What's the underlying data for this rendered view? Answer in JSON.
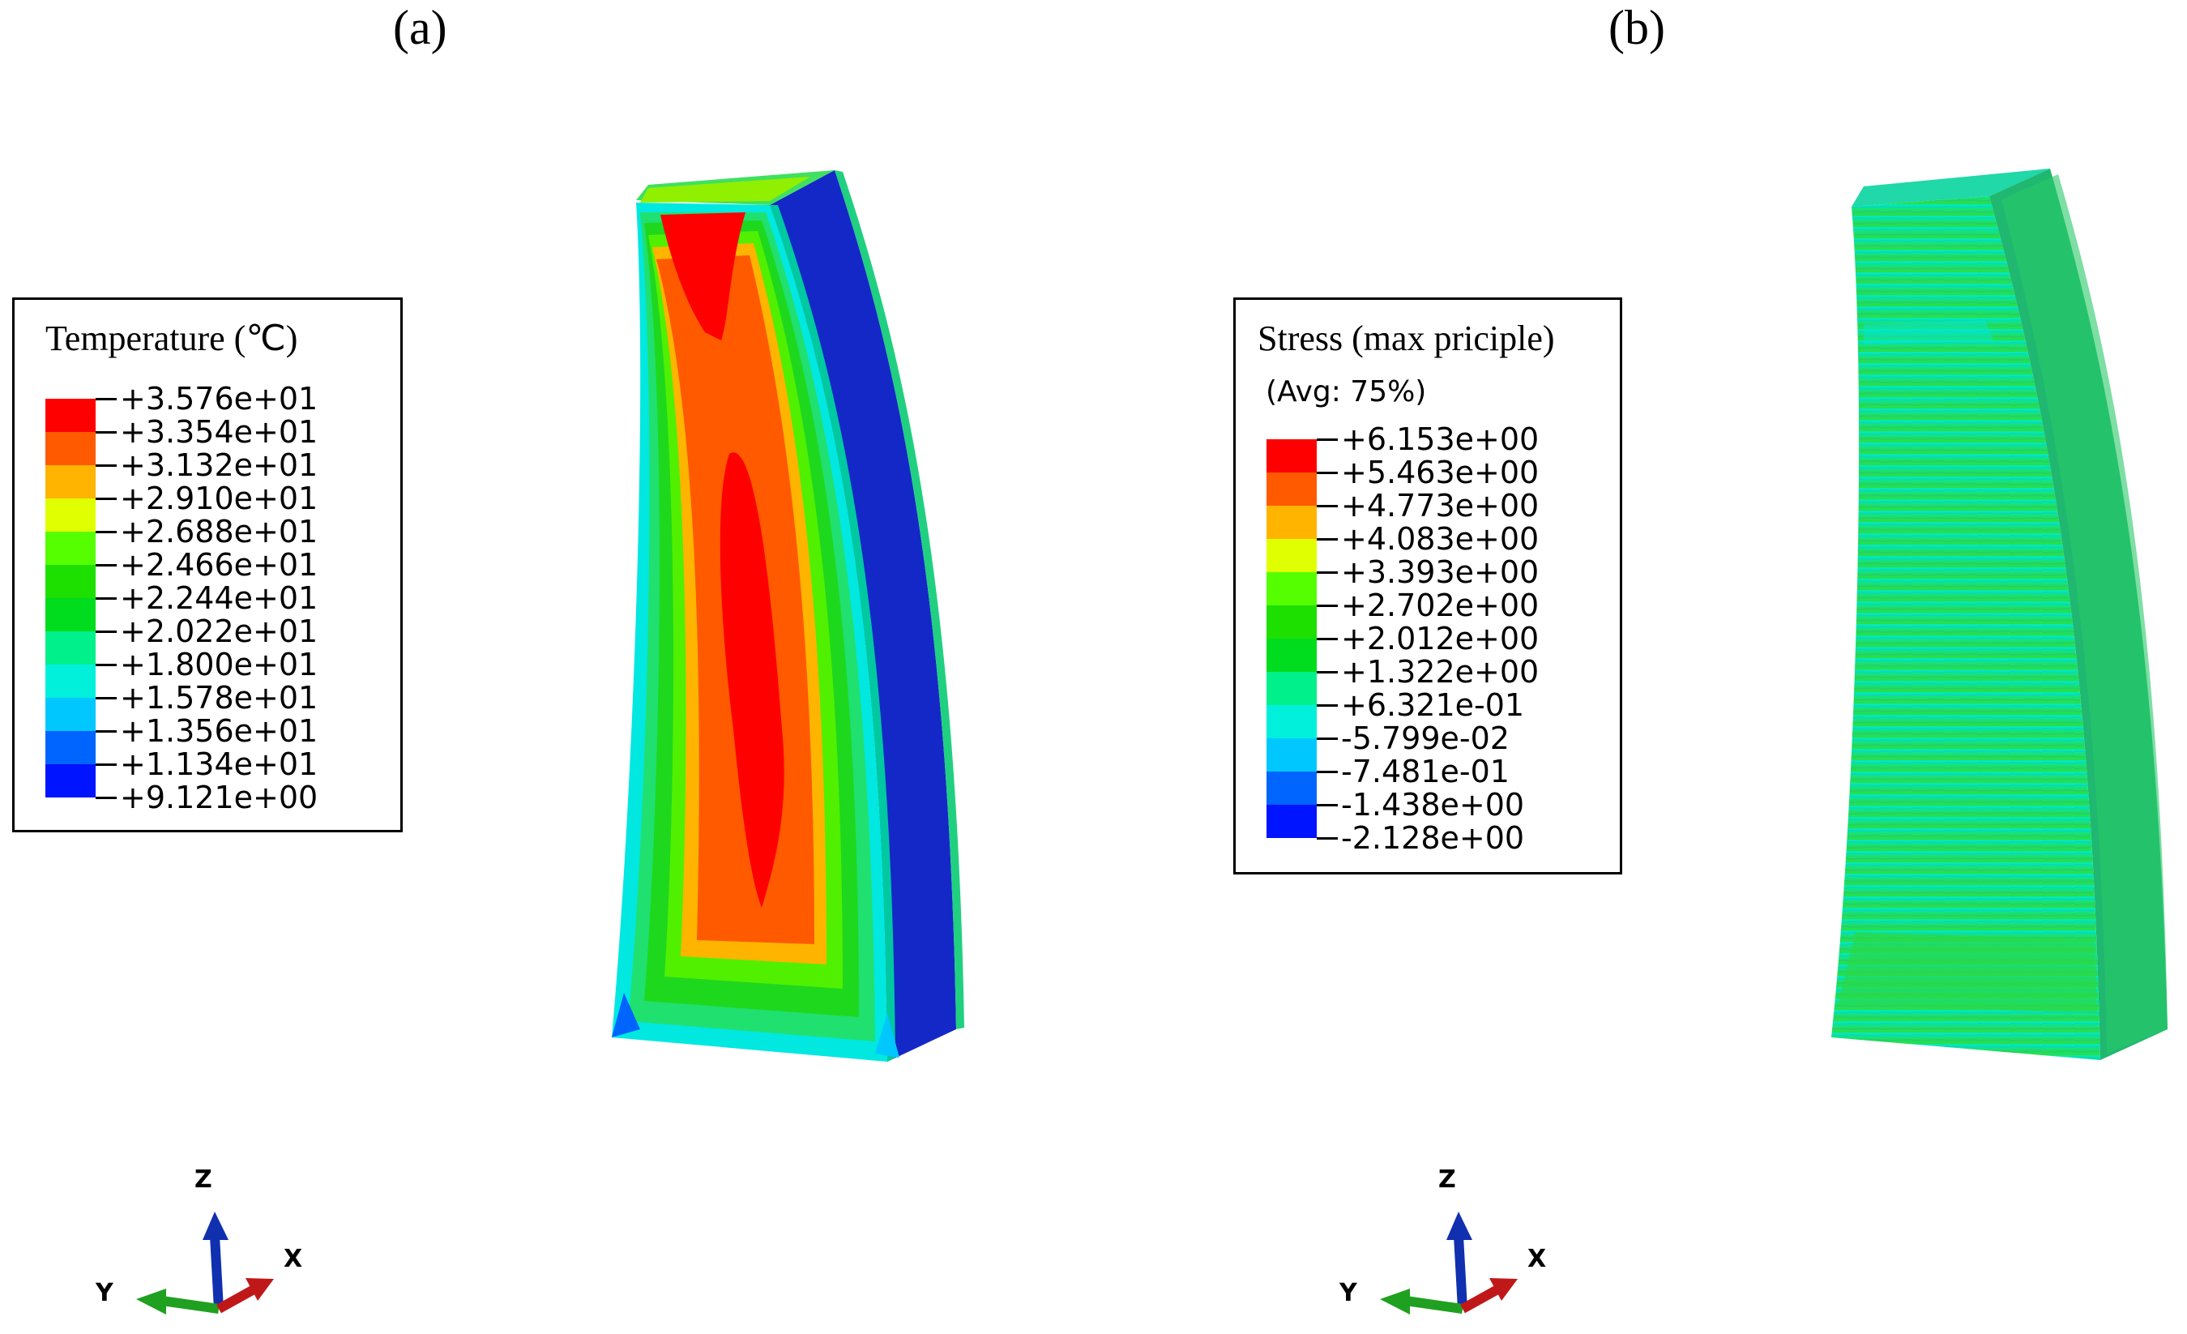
{
  "panels": [
    {
      "label": "(a)",
      "legend": {
        "title": "Temperature (℃)",
        "subtitle": "",
        "ticks": [
          "+3.576e+01",
          "+3.354e+01",
          "+3.132e+01",
          "+2.910e+01",
          "+2.688e+01",
          "+2.466e+01",
          "+2.244e+01",
          "+2.022e+01",
          "+1.800e+01",
          "+1.578e+01",
          "+1.356e+01",
          "+1.134e+01",
          "+9.121e+00"
        ]
      },
      "triad": {
        "z": "Z",
        "y": "Y",
        "x": "X"
      }
    },
    {
      "label": "(b)",
      "legend": {
        "title": "Stress (max priciple)",
        "subtitle": "(Avg: 75%)",
        "ticks": [
          "+6.153e+00",
          "+5.463e+00",
          "+4.773e+00",
          "+4.083e+00",
          "+3.393e+00",
          "+2.702e+00",
          "+2.012e+00",
          "+1.322e+00",
          "+6.321e-01",
          "-5.799e-02",
          "-7.481e-01",
          "-1.438e+00",
          "-2.128e+00"
        ]
      },
      "triad": {
        "z": "Z",
        "y": "Y",
        "x": "X"
      }
    }
  ],
  "colormap": [
    "#ff0000",
    "#ff5a00",
    "#ffb400",
    "#e0ff00",
    "#55ff00",
    "#1ee000",
    "#00dc1e",
    "#00f08c",
    "#00f0dc",
    "#00c8ff",
    "#0064ff",
    "#0014ff"
  ]
}
